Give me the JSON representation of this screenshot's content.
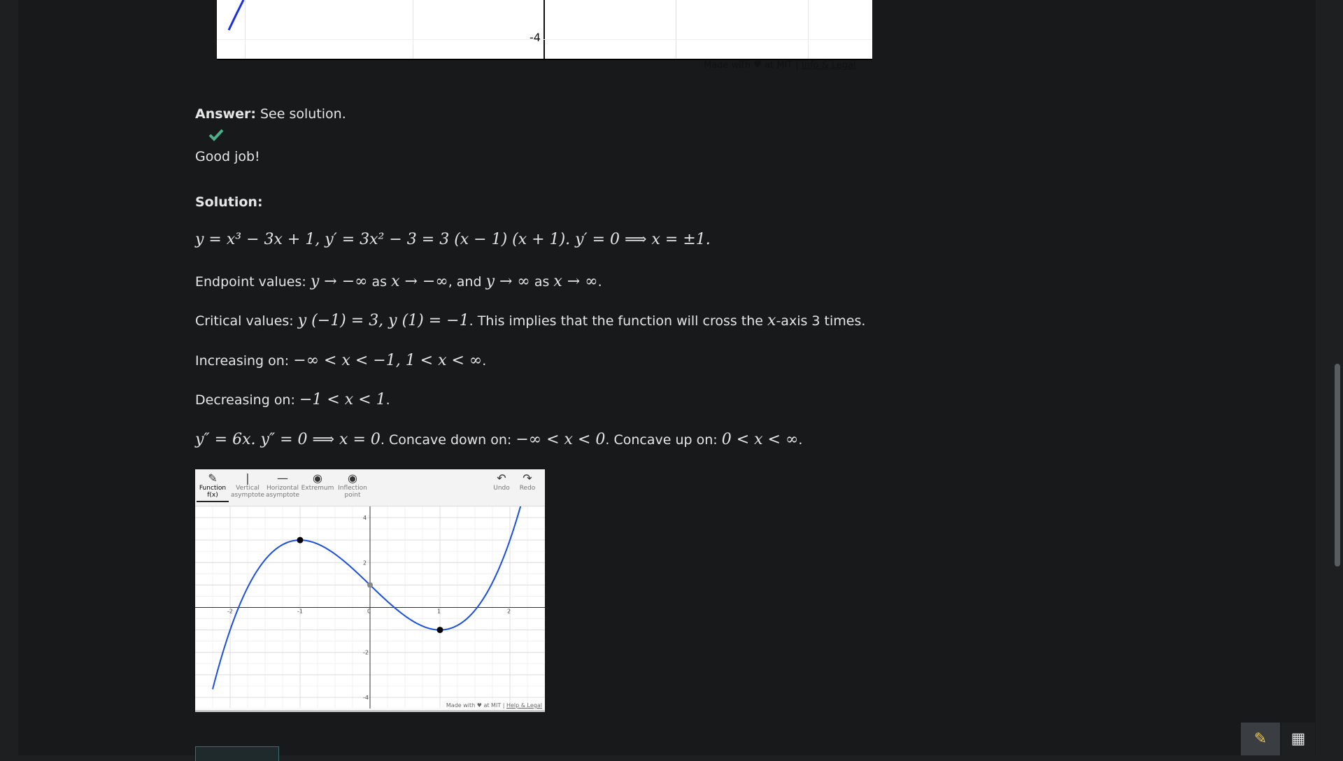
{
  "top_graph": {
    "y_label": "-4"
  },
  "footer_top": {
    "made_with": "Made with ♥ at MIT | ",
    "info_legal": "Info & Legal"
  },
  "answer": {
    "label": "Answer:",
    "text": "See solution."
  },
  "feedback": {
    "message": "Good job!",
    "check_color": "#4caf8a"
  },
  "solution": {
    "label": "Solution:",
    "line1": "y = x³ − 3x + 1, y′ = 3x² − 3 = 3 (x − 1) (x + 1). y′ = 0 ⟹ x = ±1.",
    "endpoint_label": "Endpoint values:",
    "endpoint_math1": "y → −∞",
    "endpoint_as1": "as",
    "endpoint_math2": "x → −∞",
    "endpoint_and": ", and",
    "endpoint_math3": "y → ∞",
    "endpoint_as2": "as",
    "endpoint_math4": "x → ∞",
    "endpoint_end": ".",
    "critical_label": "Critical values:",
    "critical_math": "y (−1) = 3, y (1) = −1",
    "critical_text": ". This implies that the function will cross the",
    "critical_x": "x",
    "critical_end": "-axis 3 times.",
    "increasing_label": "Increasing on:",
    "increasing_math": "−∞ < x < −1, 1 < x < ∞",
    "increasing_end": ".",
    "decreasing_label": "Decreasing on:",
    "decreasing_math": "−1 < x < 1",
    "decreasing_end": ".",
    "concavity_math1": "y″ = 6x. y″ = 0 ⟹ x = 0",
    "concave_down_label": ". Concave down on:",
    "concave_down_math": "−∞ < x < 0",
    "concave_up_label": ". Concave up on:",
    "concave_up_math": "0 < x < ∞",
    "concavity_end": "."
  },
  "solution_graph": {
    "tools": [
      {
        "label1": "Function",
        "label2": "f(x)",
        "icon": "pencil-icon"
      },
      {
        "label1": "Vertical",
        "label2": "asymptote",
        "icon": "vertical-line-icon"
      },
      {
        "label1": "Horizontal",
        "label2": "asymptote",
        "icon": "horizontal-line-icon"
      },
      {
        "label1": "Extremum",
        "label2": "",
        "icon": "target-icon"
      },
      {
        "label1": "Inflection",
        "label2": "point",
        "icon": "target-icon"
      }
    ],
    "undo_label": "Undo",
    "redo_label": "Redo",
    "x_ticks": [
      "-2",
      "-1",
      "0",
      "1",
      "2"
    ],
    "y_ticks": [
      "4",
      "2",
      "-2",
      "-4"
    ],
    "made_with": "Made with ♥ at MIT | ",
    "help_legal": "Help & Legal",
    "curve_color": "#1a4fe0"
  },
  "chart_data": {
    "type": "line",
    "series": [
      {
        "x": [
          -2.25,
          -2,
          -1.5,
          -1,
          -0.5,
          0,
          0.5,
          1,
          1.5,
          2,
          2.35
        ],
        "y": [
          -3.64,
          -1,
          2.125,
          3,
          2.375,
          1,
          -0.375,
          -1,
          -0.125,
          3,
          6.93
        ]
      }
    ],
    "points": [
      {
        "x": -1,
        "y": 3,
        "kind": "extremum"
      },
      {
        "x": 0,
        "y": 1,
        "kind": "inflection"
      },
      {
        "x": 1,
        "y": -1,
        "kind": "extremum"
      }
    ],
    "xlim": [
      -2.5,
      2.5
    ],
    "ylim": [
      -4.5,
      4.5
    ]
  }
}
